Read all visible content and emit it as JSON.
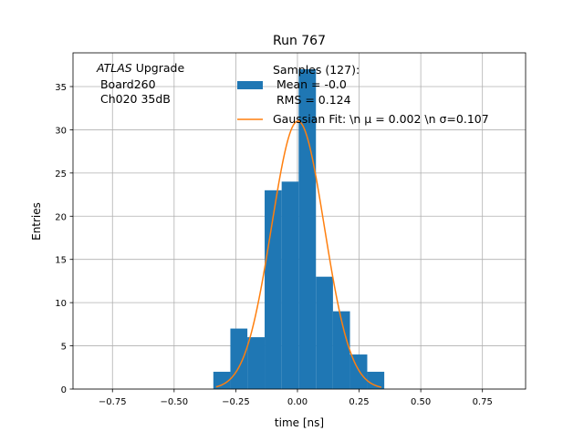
{
  "chart_data": {
    "type": "bar",
    "title": "Run 767",
    "xlabel": "time [ns]",
    "ylabel": "Entries",
    "xlim": [
      -0.91,
      0.925
    ],
    "ylim": [
      0,
      38.9
    ],
    "grid": true,
    "xticks": [
      -0.75,
      -0.5,
      -0.25,
      0.0,
      0.25,
      0.5,
      0.75
    ],
    "xtick_labels": [
      "−0.75",
      "−0.50",
      "−0.25",
      "0.00",
      "0.25",
      "0.50",
      "0.75"
    ],
    "yticks": [
      0,
      5,
      10,
      15,
      20,
      25,
      30,
      35
    ],
    "ytick_labels": [
      "0",
      "5",
      "10",
      "15",
      "20",
      "25",
      "30",
      "35"
    ],
    "histogram": {
      "bin_edges": [
        -0.341,
        -0.272,
        -0.203,
        -0.133,
        -0.064,
        0.005,
        0.075,
        0.144,
        0.213,
        0.283,
        0.352
      ],
      "values": [
        2,
        7,
        6,
        23,
        24,
        37,
        13,
        9,
        4,
        2
      ],
      "color": "#1f77b4"
    },
    "fit": {
      "type": "gaussian",
      "mu": 0.002,
      "sigma": 0.107,
      "amplitude": 31.0,
      "x_range": [
        -0.33,
        0.34
      ],
      "color": "#ff7f0e"
    },
    "legend": {
      "placement": "top-center",
      "entries": [
        {
          "lines": [
            "Samples (127):",
            " Mean = -0.0",
            " RMS = 0.124"
          ],
          "kind": "patch"
        },
        {
          "lines": [
            "Gaussian Fit: \\n μ = 0.002 \\n σ=0.107"
          ],
          "kind": "line"
        }
      ]
    },
    "annotation": {
      "italic_part": "ATLAS",
      "rest": " Upgrade",
      "lines": [
        " Board260",
        " Ch020 35dB"
      ]
    }
  }
}
